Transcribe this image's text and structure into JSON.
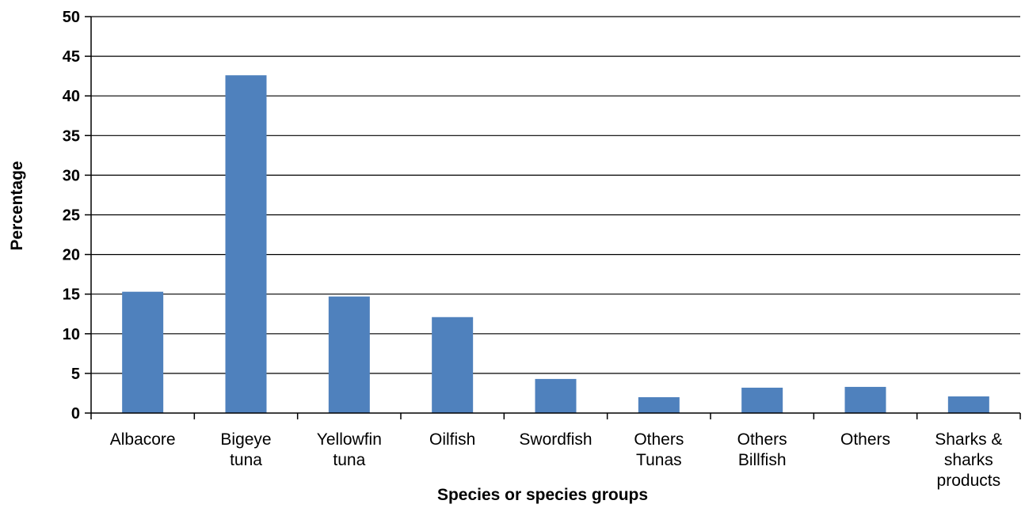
{
  "chart_data": {
    "type": "bar",
    "categories": [
      [
        "Albacore"
      ],
      [
        "Bigeye",
        "tuna"
      ],
      [
        "Yellowfin",
        "tuna"
      ],
      [
        "Oilfish"
      ],
      [
        "Swordfish"
      ],
      [
        "Others",
        "Tunas"
      ],
      [
        "Others",
        "Billfish"
      ],
      [
        "Others"
      ],
      [
        "Sharks &",
        "sharks",
        "products"
      ]
    ],
    "values": [
      15.3,
      42.6,
      14.7,
      12.1,
      4.3,
      2.0,
      3.2,
      3.3,
      2.1
    ],
    "xlabel": "Species or species groups",
    "ylabel": "Percentage",
    "ylim": [
      0,
      50
    ],
    "yticks": [
      0,
      5,
      10,
      15,
      20,
      25,
      30,
      35,
      40,
      45,
      50
    ],
    "grid": true,
    "legend": "none",
    "bar_color": "#4F81BD"
  }
}
